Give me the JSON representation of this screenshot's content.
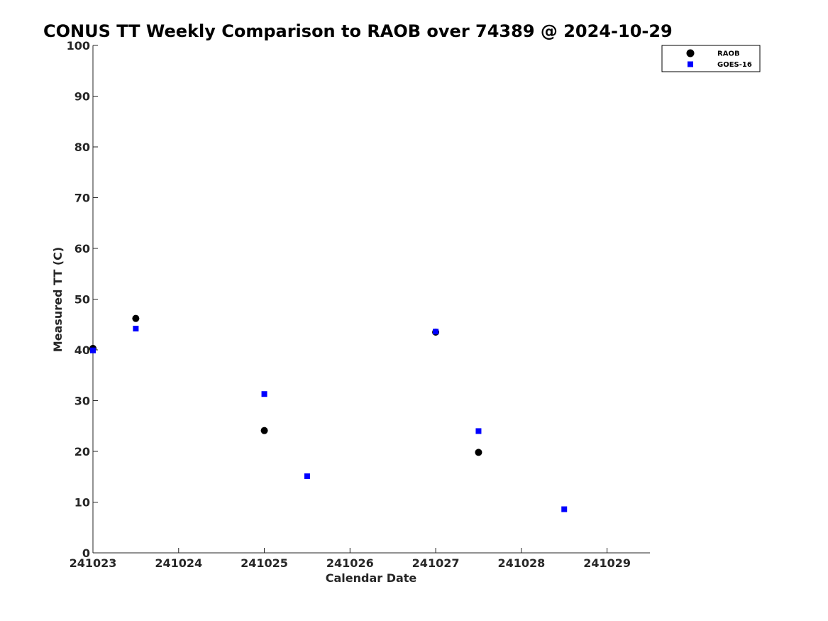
{
  "chart_data": {
    "type": "scatter",
    "title": "CONUS TT Weekly Comparison to RAOB over 74389 @ 2024-10-29",
    "xlabel": "Calendar Date",
    "ylabel": "Measured TT (C)",
    "xlim": [
      241023,
      241029.5
    ],
    "ylim": [
      0,
      100
    ],
    "x_ticks": [
      241023,
      241024,
      241025,
      241026,
      241027,
      241028,
      241029
    ],
    "x_tick_labels": [
      "241023",
      "241024",
      "241025",
      "241026",
      "241027",
      "241028",
      "241029"
    ],
    "y_ticks": [
      0,
      10,
      20,
      30,
      40,
      50,
      60,
      70,
      80,
      90,
      100
    ],
    "y_tick_labels": [
      "0",
      "10",
      "20",
      "30",
      "40",
      "50",
      "60",
      "70",
      "80",
      "90",
      "100"
    ],
    "grid": false,
    "legend_position": "top-right",
    "series": [
      {
        "name": "RAOB",
        "marker": "circle",
        "color": "#000000",
        "points": [
          {
            "x": 241023.0,
            "y": 40.3
          },
          {
            "x": 241023.5,
            "y": 46.2
          },
          {
            "x": 241025.0,
            "y": 24.1
          },
          {
            "x": 241027.0,
            "y": 43.5
          },
          {
            "x": 241027.5,
            "y": 19.8
          }
        ]
      },
      {
        "name": "GOES-16",
        "marker": "square",
        "color": "#0000ff",
        "points": [
          {
            "x": 241023.0,
            "y": 39.9
          },
          {
            "x": 241023.5,
            "y": 44.2
          },
          {
            "x": 241025.0,
            "y": 31.3
          },
          {
            "x": 241025.5,
            "y": 15.1
          },
          {
            "x": 241027.0,
            "y": 43.6
          },
          {
            "x": 241027.5,
            "y": 24.0
          },
          {
            "x": 241028.5,
            "y": 8.6
          }
        ]
      }
    ]
  }
}
